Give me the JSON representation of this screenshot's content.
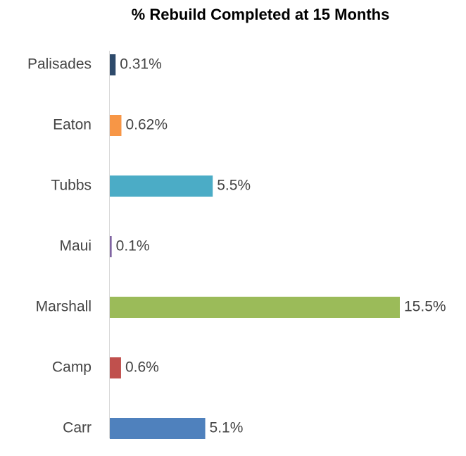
{
  "chart_data": {
    "type": "barh",
    "title": "% Rebuild Completed at 15 Months",
    "categories": [
      "Palisades",
      "Eaton",
      "Tubbs",
      "Maui",
      "Marshall",
      "Camp",
      "Carr"
    ],
    "values": [
      0.31,
      0.62,
      5.5,
      0.1,
      15.5,
      0.6,
      5.1
    ],
    "value_labels": [
      "0.31%",
      "0.62%",
      "5.5%",
      "0.1%",
      "15.5%",
      "0.6%",
      "5.1%"
    ],
    "colors": [
      "#2e4a6b",
      "#f79646",
      "#4bacc6",
      "#8064a2",
      "#9bbb59",
      "#c0504d",
      "#4f81bd"
    ]
  }
}
